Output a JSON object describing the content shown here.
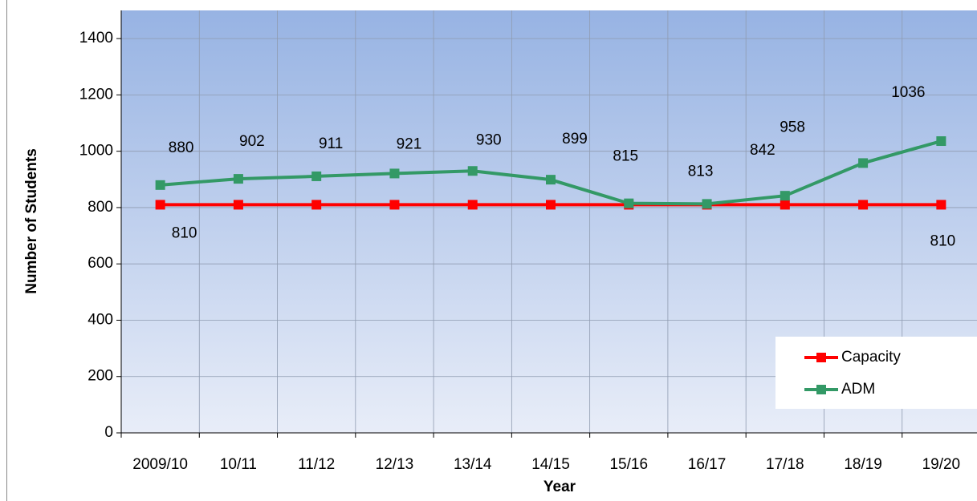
{
  "chart_data": {
    "type": "line",
    "x_label": "Year",
    "y_label": "Number of Students",
    "categories": [
      "2009/10",
      "10/11",
      "11/12",
      "12/13",
      "13/14",
      "14/15",
      "15/16",
      "16/17",
      "17/18",
      "18/19",
      "19/20"
    ],
    "series": [
      {
        "name": "Capacity",
        "color": "#ff0000",
        "values": [
          810,
          810,
          810,
          810,
          810,
          810,
          810,
          810,
          810,
          810,
          810
        ],
        "value_labels": [
          "810",
          null,
          null,
          null,
          null,
          null,
          null,
          null,
          null,
          null,
          "810"
        ]
      },
      {
        "name": "ADM",
        "color": "#339966",
        "values": [
          880,
          902,
          911,
          921,
          930,
          899,
          815,
          813,
          842,
          958,
          1036
        ]
      }
    ],
    "ylim": [
      0,
      1500
    ],
    "yticks": [
      0,
      200,
      400,
      600,
      800,
      1000,
      1200,
      1400
    ],
    "grid": true,
    "legend": "lower right"
  }
}
